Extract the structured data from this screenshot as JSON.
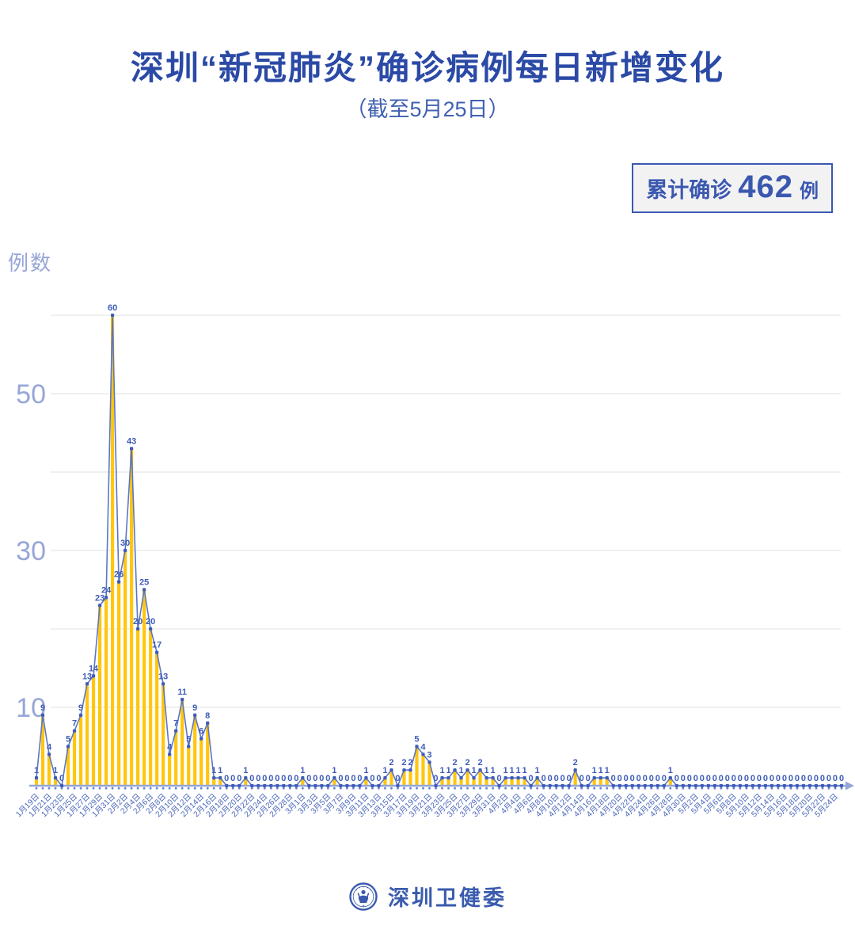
{
  "title": "深圳“新冠肺炎”确诊病例每日新增变化",
  "subtitle": "（截至5月25日）",
  "badge": {
    "prefix": "累计确诊",
    "value": "462",
    "suffix": "例"
  },
  "y_axis": {
    "title": "例数",
    "tick_values": [
      50,
      30,
      10
    ],
    "grid_values": [
      10,
      20,
      30,
      40,
      50,
      60
    ]
  },
  "footer": {
    "org": "深圳卫健委",
    "logo": "shenzhen-health-commission-emblem"
  },
  "colors": {
    "title": "#2b4aa6",
    "subtitle": "#4160b2",
    "badge": "#3b58b0",
    "bar": "#ffc60d",
    "line": "#5b76c6",
    "marker": "#3e5cb8",
    "value_label": "#3e5cb8",
    "axis": "#95a5d8",
    "date_label": "#4a67bb",
    "gridline": "#e8e8e8",
    "pale_axis_text": "#97a6d8"
  },
  "chart_data": {
    "type": "line",
    "style": "line with markers, point value labels and yellow drop bars",
    "title": "深圳“新冠肺炎”确诊病例每日新增变化（截至5月25日）",
    "xlabel": "",
    "ylabel": "例数",
    "ylim": [
      0,
      62
    ],
    "grid": true,
    "ytick_labeled": [
      10,
      30,
      50
    ],
    "x_label_step": 2,
    "x": [
      "1月19日",
      "1月20日",
      "1月21日",
      "1月22日",
      "1月23日",
      "1月24日",
      "1月25日",
      "1月26日",
      "1月27日",
      "1月28日",
      "1月29日",
      "1月30日",
      "1月31日",
      "2月1日",
      "2月2日",
      "2月3日",
      "2月4日",
      "2月5日",
      "2月6日",
      "2月7日",
      "2月8日",
      "2月9日",
      "2月10日",
      "2月11日",
      "2月12日",
      "2月13日",
      "2月14日",
      "2月15日",
      "2月16日",
      "2月17日",
      "2月18日",
      "2月19日",
      "2月20日",
      "2月21日",
      "2月22日",
      "2月23日",
      "2月24日",
      "2月25日",
      "2月26日",
      "2月27日",
      "2月28日",
      "2月29日",
      "3月1日",
      "3月2日",
      "3月3日",
      "3月4日",
      "3月5日",
      "3月6日",
      "3月7日",
      "3月8日",
      "3月9日",
      "3月10日",
      "3月11日",
      "3月12日",
      "3月13日",
      "3月14日",
      "3月15日",
      "3月16日",
      "3月17日",
      "3月18日",
      "3月19日",
      "3月20日",
      "3月21日",
      "3月22日",
      "3月23日",
      "3月24日",
      "3月25日",
      "3月26日",
      "3月27日",
      "3月28日",
      "3月29日",
      "3月30日",
      "3月31日",
      "4月1日",
      "4月2日",
      "4月3日",
      "4月4日",
      "4月5日",
      "4月6日",
      "4月7日",
      "4月8日",
      "4月9日",
      "4月10日",
      "4月11日",
      "4月12日",
      "4月13日",
      "4月14日",
      "4月15日",
      "4月16日",
      "4月17日",
      "4月18日",
      "4月19日",
      "4月20日",
      "4月21日",
      "4月22日",
      "4月23日",
      "4月24日",
      "4月25日",
      "4月26日",
      "4月27日",
      "4月28日",
      "4月29日",
      "4月30日",
      "5月1日",
      "5月2日",
      "5月3日",
      "5月4日",
      "5月5日",
      "5月6日",
      "5月7日",
      "5月8日",
      "5月9日",
      "5月10日",
      "5月11日",
      "5月12日",
      "5月13日",
      "5月14日",
      "5月15日",
      "5月16日",
      "5月17日",
      "5月18日",
      "5月19日",
      "5月20日",
      "5月21日",
      "5月22日",
      "5月23日",
      "5月24日",
      "5月25日"
    ],
    "values": [
      1,
      9,
      4,
      1,
      0,
      5,
      7,
      9,
      13,
      14,
      23,
      24,
      60,
      26,
      30,
      43,
      20,
      25,
      20,
      17,
      13,
      4,
      7,
      11,
      5,
      9,
      6,
      8,
      1,
      1,
      0,
      0,
      0,
      1,
      0,
      0,
      0,
      0,
      0,
      0,
      0,
      0,
      1,
      0,
      0,
      0,
      0,
      1,
      0,
      0,
      0,
      0,
      1,
      0,
      0,
      1,
      2,
      0,
      2,
      2,
      5,
      4,
      3,
      0,
      1,
      1,
      2,
      1,
      2,
      1,
      2,
      1,
      1,
      0,
      1,
      1,
      1,
      1,
      0,
      1,
      0,
      0,
      0,
      0,
      0,
      2,
      0,
      0,
      1,
      1,
      1,
      0,
      0,
      0,
      0,
      0,
      0,
      0,
      0,
      0,
      1,
      0,
      0,
      0,
      0,
      0,
      0,
      0,
      0,
      0,
      0,
      0,
      0,
      0,
      0,
      0,
      0,
      0,
      0,
      0,
      0,
      0,
      0,
      0,
      0,
      0,
      0,
      0
    ],
    "total": 462
  }
}
